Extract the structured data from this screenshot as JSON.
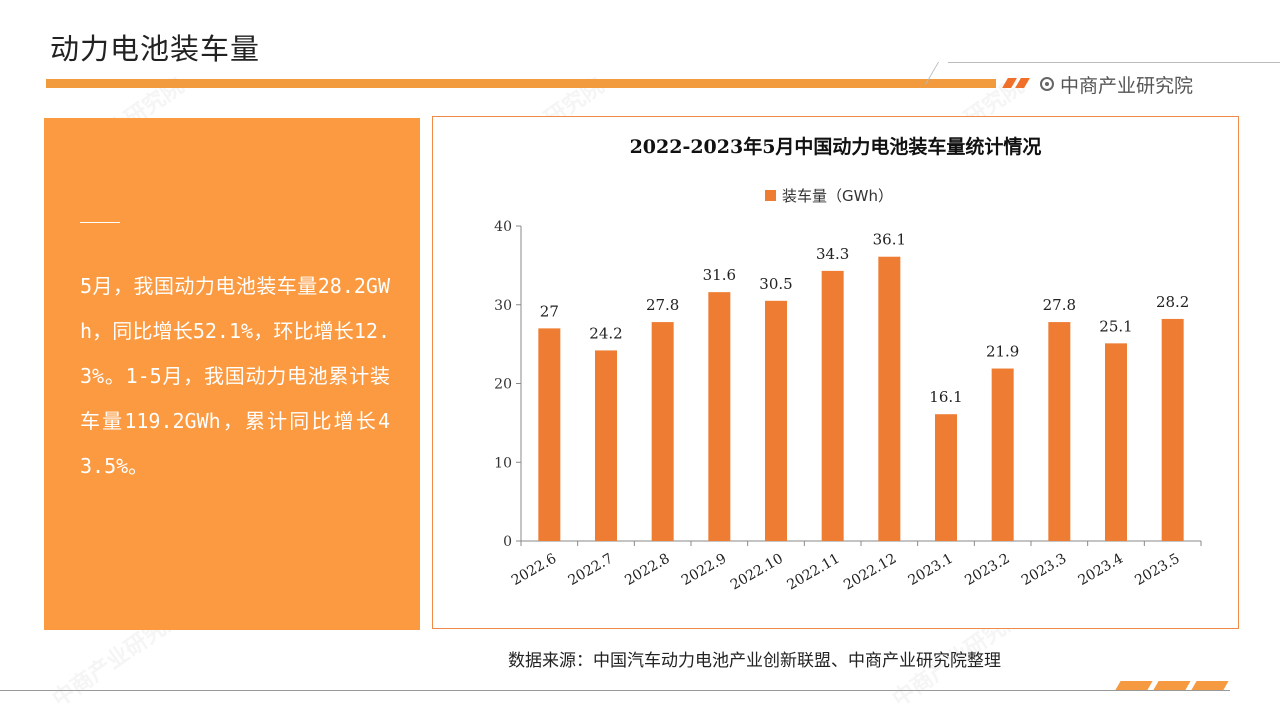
{
  "page": {
    "title": "动力电池装车量",
    "brand": "中商产业研究院",
    "watermark": "中商产业研究院"
  },
  "summary": {
    "text": "5月，我国动力电池装车量28.2GWh，同比增长52.1%，环比增长12.3%。1-5月，我国动力电池累计装车量119.2GWh，累计同比增长43.5%。"
  },
  "source": "数据来源：中国汽车动力电池产业创新联盟、中商产业研究院整理",
  "colors": {
    "accent": "#f19a3e",
    "bar": "#ee7d33",
    "panel": "#fb9a40"
  },
  "chart_data": {
    "type": "bar",
    "title": "2022-2023年5月中国动力电池装车量统计情况",
    "categories": [
      "2022.6",
      "2022.7",
      "2022.8",
      "2022.9",
      "2022.10",
      "2022.11",
      "2022.12",
      "2023.1",
      "2023.2",
      "2023.3",
      "2023.4",
      "2023.5"
    ],
    "series": [
      {
        "name": "装车量（GWh）",
        "values": [
          27,
          24.2,
          27.8,
          31.6,
          30.5,
          34.3,
          36.1,
          16.1,
          21.9,
          27.8,
          25.1,
          28.2
        ]
      }
    ],
    "data_labels": [
      "27",
      "24.2",
      "27.8",
      "31.6",
      "30.5",
      "34.3",
      "36.1",
      "16.1",
      "21.9",
      "27.8",
      "25.1",
      "28.2"
    ],
    "ylim": [
      0,
      40
    ],
    "yticks": [
      0,
      10,
      20,
      30,
      40
    ],
    "legend_position": "top",
    "grid": false
  }
}
